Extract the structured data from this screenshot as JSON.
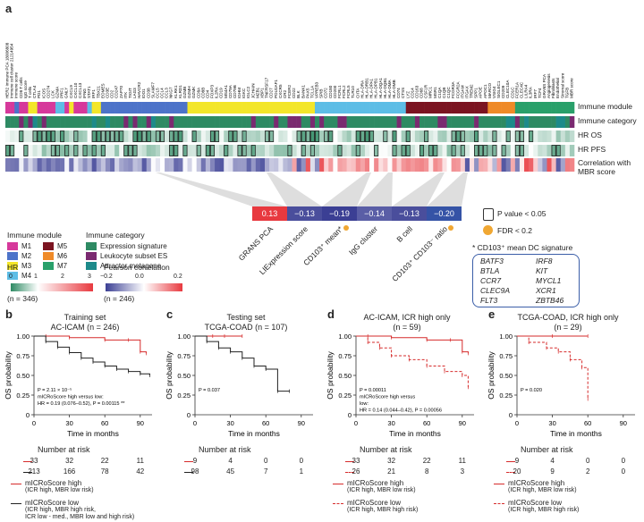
{
  "panel_a": {
    "letter": "a",
    "row_labels": [
      "Immune module",
      "Immune category",
      "HR OS",
      "HR PFS",
      "Correlation with",
      "MBR score"
    ],
    "callout_values": [
      "0.13",
      "−0.13",
      "−0.19",
      "−0.14",
      "−0.13",
      "−0.20"
    ],
    "callout_colors": [
      "#e8393f",
      "#4a4e9c",
      "#3b3f94",
      "#5a5ea6",
      "#4a4e9c",
      "#3553a6"
    ],
    "callout_labels": [
      "GRANS PCA",
      "LIExpression score",
      "CD103⁺ mean*",
      "IgG cluster",
      "B cell",
      "CD103⁺ CD103⁻ ratio"
    ],
    "pvalue_legend": "P value < 0.05",
    "fdr_legend": "FDR < 0.2",
    "signature_title": "* CD103⁺ mean DC signature",
    "genes_left": [
      "BATF3",
      "BTLA",
      "CCR7",
      "CLEC9A",
      "FLT3"
    ],
    "genes_right": [
      "IRF8",
      "KIT",
      "MYCL1",
      "XCR1",
      "ZBTB46"
    ],
    "module_title": "Immune module",
    "modules": [
      {
        "name": "M1",
        "color": "#d6399b"
      },
      {
        "name": "M2",
        "color": "#4d73c9"
      },
      {
        "name": "M3",
        "color": "#f3e62a"
      },
      {
        "name": "M4",
        "color": "#5dbde6"
      },
      {
        "name": "M5",
        "color": "#7b1421"
      },
      {
        "name": "M6",
        "color": "#ef8a28"
      },
      {
        "name": "M7",
        "color": "#29a06a"
      }
    ],
    "category_title": "Immune category",
    "categories": [
      {
        "name": "Expression signature",
        "color": "#2e8a63"
      },
      {
        "name": "Leukocyte subset ES",
        "color": "#7a2a70"
      },
      {
        "name": "Attractor metagene",
        "color": "#1d8a8a"
      }
    ],
    "hr_title": "HR",
    "hr_ticks": [
      "0",
      "1",
      "2",
      "3"
    ],
    "hr_n": "(n = 346)",
    "corr_title": "Pearson correlation",
    "corr_ticks": [
      "−0.2",
      "0.0",
      "0.2"
    ],
    "corr_n": "(n = 246)",
    "column_names": [
      "HER2 Immune PCA 18006808",
      "Immune cell cluster 21214954",
      "Immune score",
      "CD8 T cells",
      "IgG score",
      "T cells",
      "CTLA4",
      "PD1",
      "ICOS",
      "CD274",
      "LCK",
      "GZMA",
      "PRF1",
      "GNLY",
      "CXCL9",
      "CXCL10",
      "CXCL13",
      "IFNG",
      "STAT1",
      "IRF1",
      "TBX21",
      "EOMES",
      "CD3E",
      "CD2",
      "CD247",
      "ZAP70",
      "ITK",
      "TIGIT",
      "LAG3",
      "HAVCR2",
      "IDO1",
      "CD38",
      "SLAMF7",
      "CCL5",
      "CCL4",
      "CCL3",
      "NKG7",
      "KLRK1",
      "KLRD1",
      "GZMB",
      "GZMH",
      "GZMK",
      "CD8A",
      "CD8B",
      "CD4",
      "FOXP3",
      "IL2RA",
      "CD19",
      "MS4A1",
      "CD79A",
      "CD79B",
      "IGHM",
      "IGKC",
      "IGLC2",
      "JCHAIN",
      "MZB1",
      "XBP1",
      "TNFRSF17",
      "CD27",
      "POU2AF1",
      "CXCR5",
      "CR2",
      "FCER2",
      "CD22",
      "BLK",
      "BANK1",
      "PAX5",
      "TCL1A",
      "VPREB3",
      "SPIB",
      "CD72",
      "CD180",
      "CD200",
      "FCRL1",
      "FCRL2",
      "FCRL5",
      "TLR10",
      "CIITA",
      "HLA-DRA",
      "HLA-DRB1",
      "HLA-DPA1",
      "HLA-DPB1",
      "HLA-DQA1",
      "HLA-DQB1",
      "HLA-DMA",
      "HLA-DMB",
      "CD74",
      "CTSS",
      "LYZ",
      "CD14",
      "CD163",
      "CD68",
      "CSF1R",
      "MRC1",
      "MSR1",
      "C1QA",
      "C1QB",
      "C1QC",
      "FCGR3A",
      "FCGR2A",
      "ITGAM",
      "ITGAX",
      "TREM2",
      "SPP1",
      "APOE",
      "APOC1",
      "MARCO",
      "VSIG4",
      "SIGLEC1",
      "CD209",
      "CLEC10A",
      "CD1C",
      "FCER1A",
      "CLEC4C",
      "LILRA4",
      "IL3RA",
      "IRF7",
      "TCF4",
      "GRANS PCA",
      "Angiogenesis",
      "Fibroblasts",
      "Endothelial",
      "Stromal score",
      "TGFB",
      "MBR score"
    ]
  },
  "panel_b": {
    "letter": "b",
    "title1": "Training set",
    "title2": "AC-ICAM (n = 246)",
    "ylabel": "OS probability",
    "xlabel": "Time in months",
    "yticks": [
      "0",
      "0.25",
      "0.50",
      "0.75",
      "1.00"
    ],
    "xticks": [
      "0",
      "30",
      "60",
      "90"
    ],
    "annot": [
      "P = 2.11 × 10⁻⁵",
      "mICRoScore high versus low:",
      "HR = 0.19 (0.076–0.52), P = 0.00115 **"
    ],
    "risk_title": "Number at risk",
    "risk_rows": [
      [
        "33",
        "32",
        "22",
        "11"
      ],
      [
        "213",
        "166",
        "78",
        "42"
      ]
    ],
    "legend": [
      {
        "text": "mICRoScore high",
        "sub": "(ICR high, MBR low risk)",
        "color": "#d62b2b",
        "dash": false
      },
      {
        "text": "mICRoScore low",
        "sub": "(ICR high, MBR high risk,",
        "sub2": "ICR low - med., MBR low and high risk)",
        "color": "#222222",
        "dash": false
      }
    ]
  },
  "panel_c": {
    "letter": "c",
    "title1": "Testing set",
    "title2": "TCGA-COAD (n = 107)",
    "ylabel": "OS probability",
    "xlabel": "Time in months",
    "yticks": [
      "0",
      "0.25",
      "0.50",
      "0.75",
      "1.00"
    ],
    "xticks": [
      "0",
      "30",
      "60",
      "90"
    ],
    "annot": [
      "P = 0.037"
    ],
    "risk_title": "Number at risk",
    "risk_rows": [
      [
        "9",
        "4",
        "0",
        "0"
      ],
      [
        "98",
        "45",
        "7",
        "1"
      ]
    ]
  },
  "panel_d": {
    "letter": "d",
    "title1": "AC-ICAM, ICR high only",
    "title2": "(n = 59)",
    "ylabel": "OS probability",
    "xlabel": "Time in months",
    "yticks": [
      "0",
      "0.25",
      "0.50",
      "0.75",
      "1.00"
    ],
    "xticks": [
      "0",
      "30",
      "60",
      "90"
    ],
    "annot": [
      "P = 0.00011",
      "mICRoScore high versus",
      "low:",
      "HR = 0.14 (0.044–0.42), P = 0.00056"
    ],
    "risk_title": "Number at risk",
    "risk_rows": [
      [
        "33",
        "32",
        "22",
        "11"
      ],
      [
        "26",
        "21",
        "8",
        "3"
      ]
    ],
    "legend": [
      {
        "text": "mICRoScore high",
        "sub": "(ICR high, MBR low risk)",
        "color": "#d62b2b",
        "dash": false
      },
      {
        "text": "mICRoScore low",
        "sub": "(ICR high, MBR high risk)",
        "color": "#d62b2b",
        "dash": true
      }
    ]
  },
  "panel_e": {
    "letter": "e",
    "title1": "TCGA-COAD, ICR high only",
    "title2": "(n = 29)",
    "ylabel": "OS probability",
    "xlabel": "Time in months",
    "yticks": [
      "0",
      "0.25",
      "0.50",
      "0.75",
      "1.00"
    ],
    "xticks": [
      "0",
      "30",
      "60",
      "90"
    ],
    "annot": [
      "P = 0.020"
    ],
    "risk_title": "Number at risk",
    "risk_rows": [
      [
        "9",
        "4",
        "0",
        "0"
      ],
      [
        "20",
        "9",
        "2",
        "0"
      ]
    ],
    "legend": [
      {
        "text": "mICRoScore high",
        "sub": "(ICR high, MBR low risk)",
        "color": "#d62b2b",
        "dash": false
      },
      {
        "text": "mICRoScore low",
        "sub": "(ICR high, MBR high risk)",
        "color": "#d62b2b",
        "dash": true
      }
    ]
  },
  "chart_data": [
    {
      "type": "line",
      "title": "Training set AC-ICAM (n = 246)",
      "xlabel": "Time in months",
      "ylabel": "OS probability",
      "xlim": [
        0,
        100
      ],
      "ylim": [
        0,
        1
      ],
      "series": [
        {
          "name": "mICRoScore high",
          "x": [
            0,
            10,
            30,
            60,
            80,
            90,
            95
          ],
          "y": [
            1.0,
            1.0,
            0.98,
            0.95,
            0.95,
            0.8,
            0.78
          ]
        },
        {
          "name": "mICRoScore low",
          "x": [
            0,
            10,
            20,
            30,
            40,
            50,
            60,
            70,
            80,
            90,
            98
          ],
          "y": [
            1.0,
            0.93,
            0.86,
            0.79,
            0.72,
            0.67,
            0.62,
            0.58,
            0.55,
            0.52,
            0.5
          ]
        }
      ]
    },
    {
      "type": "line",
      "title": "Testing set TCGA-COAD (n = 107)",
      "xlabel": "Time in months",
      "ylabel": "OS probability",
      "xlim": [
        0,
        100
      ],
      "ylim": [
        0,
        1
      ],
      "series": [
        {
          "name": "mICRoScore high",
          "x": [
            0,
            15,
            25,
            40
          ],
          "y": [
            1.0,
            1.0,
            1.0,
            1.0
          ]
        },
        {
          "name": "mICRoScore low",
          "x": [
            0,
            10,
            20,
            30,
            40,
            50,
            60,
            70,
            80
          ],
          "y": [
            1.0,
            0.93,
            0.85,
            0.8,
            0.72,
            0.62,
            0.58,
            0.3,
            0.3
          ]
        }
      ]
    },
    {
      "type": "line",
      "title": "AC-ICAM, ICR high only (n = 59)",
      "xlabel": "Time in months",
      "ylabel": "OS probability",
      "xlim": [
        0,
        100
      ],
      "ylim": [
        0,
        1
      ],
      "series": [
        {
          "name": "mICRoScore high",
          "x": [
            0,
            10,
            30,
            60,
            80,
            90,
            95
          ],
          "y": [
            1.0,
            1.0,
            0.98,
            0.95,
            0.95,
            0.8,
            0.78
          ]
        },
        {
          "name": "mICRoScore low",
          "x": [
            0,
            10,
            20,
            30,
            45,
            60,
            75,
            90,
            95
          ],
          "y": [
            1.0,
            0.92,
            0.85,
            0.75,
            0.7,
            0.62,
            0.55,
            0.5,
            0.35
          ]
        }
      ]
    },
    {
      "type": "line",
      "title": "TCGA-COAD, ICR high only (n = 29)",
      "xlabel": "Time in months",
      "ylabel": "OS probability",
      "xlim": [
        0,
        100
      ],
      "ylim": [
        0,
        1
      ],
      "series": [
        {
          "name": "mICRoScore high",
          "x": [
            0,
            30,
            60
          ],
          "y": [
            1.0,
            1.0,
            1.0
          ]
        },
        {
          "name": "mICRoScore low",
          "x": [
            0,
            10,
            25,
            35,
            45,
            55,
            60
          ],
          "y": [
            1.0,
            0.92,
            0.85,
            0.8,
            0.7,
            0.6,
            0.2
          ]
        }
      ]
    }
  ]
}
